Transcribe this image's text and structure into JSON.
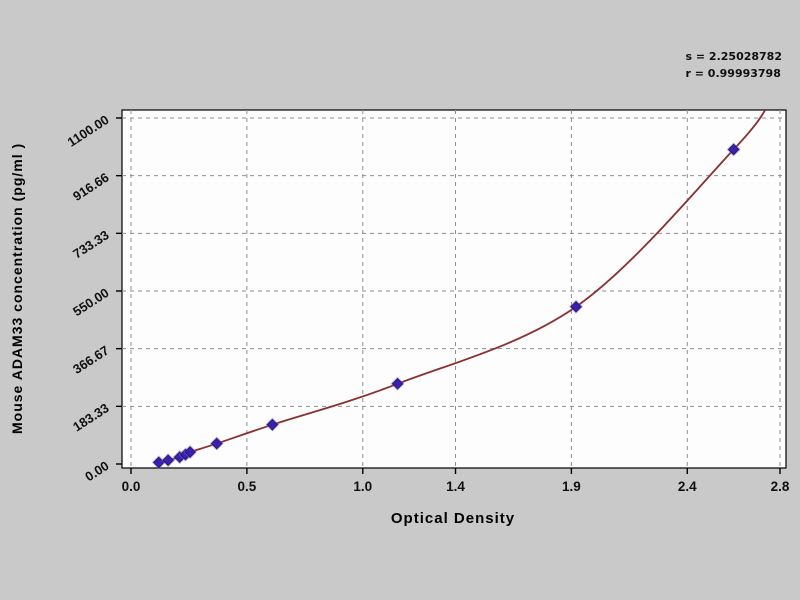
{
  "chart_data": {
    "type": "scatter",
    "title": "",
    "xlabel": "Optical Density",
    "ylabel": "Mouse ADAM33 concentration (pg/ml )",
    "xlim": [
      0,
      2.8
    ],
    "ylim": [
      0,
      1100
    ],
    "grid": "dashed",
    "x_ticks": [
      0.0,
      0.5,
      1.0,
      1.4,
      1.9,
      2.4,
      2.8
    ],
    "x_tick_labels": [
      "0.0",
      "0.5",
      "1.0",
      "1.4",
      "1.9",
      "2.4",
      "2.8"
    ],
    "y_ticks": [
      0,
      183.33,
      366.67,
      550.0,
      733.33,
      916.66,
      1100.0
    ],
    "y_tick_labels": [
      "0.00",
      "183.33",
      "366.67",
      "550.00",
      "733.33",
      "916.66",
      "1100.00"
    ],
    "points": [
      {
        "x": 0.12,
        "y": 5
      },
      {
        "x": 0.16,
        "y": 12
      },
      {
        "x": 0.21,
        "y": 22
      },
      {
        "x": 0.235,
        "y": 30
      },
      {
        "x": 0.255,
        "y": 38
      },
      {
        "x": 0.37,
        "y": 65
      },
      {
        "x": 0.61,
        "y": 125
      },
      {
        "x": 1.15,
        "y": 255
      },
      {
        "x": 1.92,
        "y": 500
      },
      {
        "x": 2.6,
        "y": 1000
      }
    ],
    "curve_exit_top_x": 2.76,
    "stats": {
      "s_label": "s = 2.25028782",
      "r_label": "r = 0.99993798"
    },
    "colors": {
      "curve": "#8b3030",
      "point": "#3b1fae",
      "point_halo": "#7a6fd0",
      "grid": "#8f8f8f",
      "plot_bg": "#fdfdfd",
      "plot_border": "#000000",
      "page_bg": "#c9c9c9"
    },
    "legend": null
  }
}
